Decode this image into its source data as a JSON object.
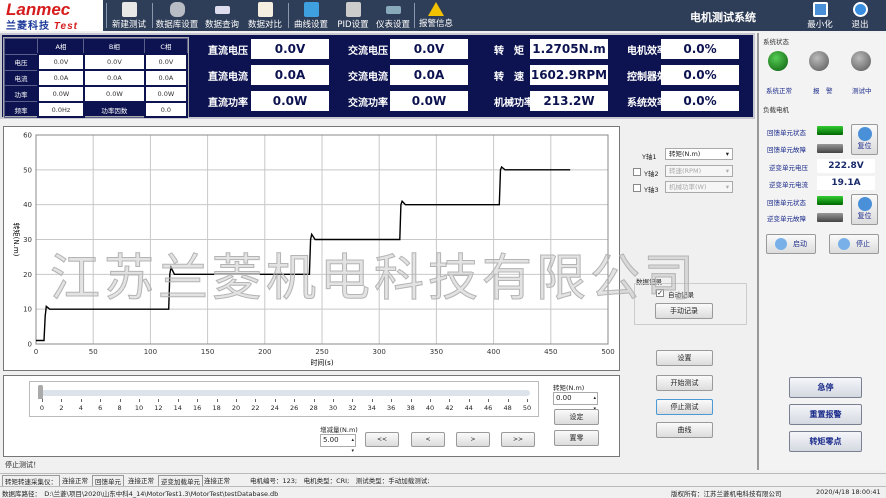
{
  "app": {
    "title": "电机测试系统",
    "logo_top": "Lanmec",
    "logo_bottom": "兰菱科技",
    "logo_test": "Test",
    "watermark": "江苏兰菱机电科技有限公司"
  },
  "toolbar": [
    {
      "label": "新建测试",
      "icon": "new-test-icon"
    },
    {
      "label": "数据库设置",
      "icon": "database-settings-icon"
    },
    {
      "label": "数据查询",
      "icon": "data-query-icon"
    },
    {
      "label": "数据对比",
      "icon": "data-compare-icon"
    },
    {
      "label": "曲线设置",
      "icon": "tools-icon"
    },
    {
      "label": "PID设置",
      "icon": "pid-icon"
    },
    {
      "label": "仪表设置",
      "icon": "instrument-icon"
    },
    {
      "label": "报警信息",
      "icon": "warning-icon"
    }
  ],
  "window": {
    "minimize": "最小化",
    "exit": "退出"
  },
  "phase_table": {
    "headers": [
      "A相",
      "B相",
      "C相"
    ],
    "rows": [
      {
        "label": "电压",
        "values": [
          "0.0V",
          "0.0V",
          "0.0V"
        ]
      },
      {
        "label": "电流",
        "values": [
          "0.0A",
          "0.0A",
          "0.0A"
        ]
      },
      {
        "label": "功率",
        "values": [
          "0.0W",
          "0.0W",
          "0.0W"
        ]
      }
    ],
    "freq_label": "频率",
    "freq": "0.0Hz",
    "pf_label": "功率因数",
    "pf": "0.0"
  },
  "readings": [
    {
      "label": "直流电压",
      "value": "0.0V"
    },
    {
      "label": "直流电流",
      "value": "0.0A"
    },
    {
      "label": "直流功率",
      "value": "0.0W"
    },
    {
      "label": "交流电压",
      "value": "0.0V"
    },
    {
      "label": "交流电流",
      "value": "0.0A"
    },
    {
      "label": "交流功率",
      "value": "0.0W"
    },
    {
      "label": "转　矩",
      "value": "1.2705N.m"
    },
    {
      "label": "转　速",
      "value": "1602.9RPM"
    },
    {
      "label": "机械功率",
      "value": "213.2W"
    },
    {
      "label": "电机效率",
      "value": "0.0%"
    },
    {
      "label": "控制器效率",
      "value": "0.0%"
    },
    {
      "label": "系统效率",
      "value": "0.0%"
    }
  ],
  "system_status": {
    "title": "系统状态",
    "leds": [
      {
        "label": "系统正常",
        "color": "#1a8a1a"
      },
      {
        "label": "报　警",
        "color": "#808080"
      },
      {
        "label": "测试中",
        "color": "#808080"
      }
    ]
  },
  "load_motor": {
    "title": "负载电机",
    "fb_state": "回馈单元状态",
    "fb_fault": "回馈单元故障",
    "reset": "复位",
    "inv_voltage_label": "逆变单元电压",
    "inv_voltage": "222.8V",
    "inv_current_label": "逆变单元电流",
    "inv_current": "19.1A",
    "fb_state2": "回馈单元状态",
    "inv_fault": "逆变单元故障",
    "reset2": "复位",
    "start": "启动",
    "stop": "停止"
  },
  "right_buttons": [
    "急停",
    "重置报警",
    "转矩零点"
  ],
  "axes_select": {
    "y1_label": "Y轴1",
    "y1": "转矩(N.m)",
    "y2_label": "Y轴2",
    "y2": "转速(RPM)",
    "y3_label": "Y轴3",
    "y3": "机械功率(W)",
    "y2_checked": false,
    "y3_checked": false
  },
  "record": {
    "title": "数据记录",
    "auto": "自动记录",
    "auto_checked": true,
    "manual": "手动记录"
  },
  "ctrl_buttons": [
    "设置",
    "开始测试",
    "停止测试",
    "曲线"
  ],
  "slider": {
    "ticks": [
      "0",
      "2",
      "4",
      "6",
      "8",
      "10",
      "12",
      "14",
      "16",
      "18",
      "20",
      "22",
      "24",
      "26",
      "28",
      "30",
      "32",
      "34",
      "36",
      "38",
      "40",
      "42",
      "44",
      "46",
      "48",
      "50"
    ],
    "value": 0,
    "min": 0,
    "max": 50
  },
  "torque": {
    "label": "转矩(N.m)",
    "value": "0.00",
    "set": "设定",
    "zero": "置零"
  },
  "step": {
    "label": "增减量(N.m)",
    "value": "5.00",
    "buttons": [
      "<<",
      "<",
      ">",
      ">>"
    ]
  },
  "message": "停止测试！",
  "status_bar": {
    "items": [
      "转矩转速采集仪：",
      "连接正常",
      "回馈单元",
      "连接正常",
      "逆变加载单元",
      "连接正常"
    ],
    "motor_info": "电机编号：123;　电机类型：CRI;　测试类型：手动加载测试;",
    "db_path": "数据库路径：　D:\\兰菱\\项目\\2020\\山东中科4_14\\MotorTest1.3\\MotorTest\\testDatabase.db",
    "copyright": "版权所有：江苏兰菱机电科技有限公司",
    "datetime": "2020/4/18 18:00:41"
  },
  "chart_data": {
    "type": "line",
    "xlabel": "时间(s)",
    "ylabel": "转矩(N.m)",
    "xlim": [
      0,
      500
    ],
    "ylim": [
      0,
      60
    ],
    "grid": true,
    "xticks": [
      0,
      50,
      100,
      150,
      200,
      250,
      300,
      350,
      400,
      450,
      500
    ],
    "yticks": [
      0,
      10,
      20,
      30,
      40,
      50,
      60
    ],
    "series": [
      {
        "x": [
          0,
          7,
          8,
          9,
          12,
          116,
          117,
          118,
          121,
          239,
          240,
          241,
          244,
          318,
          319,
          320,
          323,
          405,
          406,
          407,
          410,
          467
        ],
        "y": [
          1,
          1,
          8,
          10.8,
          10,
          10,
          20,
          22,
          20,
          20,
          30,
          31.5,
          30,
          30,
          40,
          41,
          40,
          40,
          50,
          50.8,
          50,
          50
        ]
      }
    ]
  }
}
